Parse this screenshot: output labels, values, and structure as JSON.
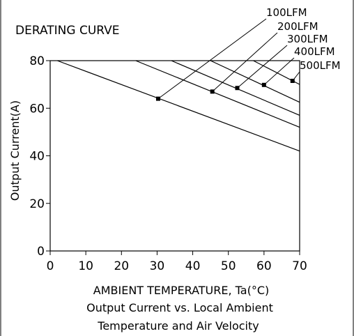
{
  "chart_data": {
    "type": "line",
    "title": "DERATING CURVE",
    "xlabel": "AMBIENT TEMPERATURE, Ta(°C)",
    "ylabel": "Output Current(A)",
    "caption": [
      "Output Current vs. Local Ambient",
      "Temperature and Air Velocity"
    ],
    "xlim": [
      0,
      70
    ],
    "ylim": [
      0,
      80
    ],
    "x_ticks": [
      0,
      10,
      20,
      30,
      40,
      50,
      60,
      70
    ],
    "y_ticks": [
      0,
      20,
      40,
      60,
      80
    ],
    "grid": false,
    "series": [
      {
        "name": "100LFM",
        "x": [
          2,
          70
        ],
        "y": [
          80,
          42
        ],
        "marker": [
          30.3,
          64
        ]
      },
      {
        "name": "200LFM",
        "x": [
          24,
          70
        ],
        "y": [
          80,
          52
        ],
        "marker": [
          45.5,
          67
        ]
      },
      {
        "name": "300LFM",
        "x": [
          34,
          70
        ],
        "y": [
          80,
          57
        ],
        "marker": [
          52.5,
          68.5
        ]
      },
      {
        "name": "400LFM",
        "x": [
          45,
          70
        ],
        "y": [
          80,
          62.5
        ],
        "marker": [
          60,
          69.8
        ]
      },
      {
        "name": "500LFM",
        "x": [
          57,
          70
        ],
        "y": [
          80,
          70
        ],
        "marker": [
          68,
          71.5
        ]
      }
    ]
  }
}
